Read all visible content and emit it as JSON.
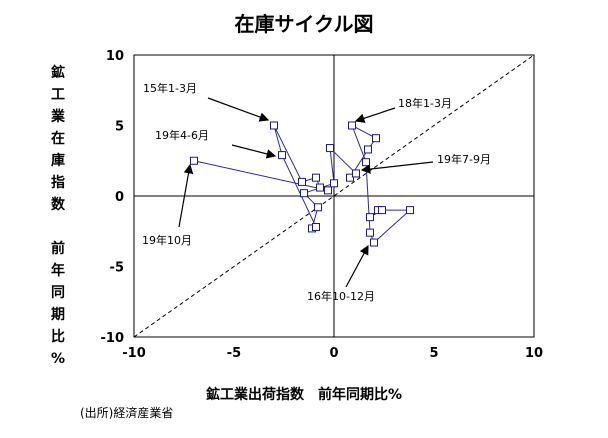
{
  "chart_data": {
    "type": "scatter",
    "title": "在庫サイクル図",
    "xlabel": "鉱工業出荷指数　前年同期比%",
    "ylabel": [
      "鉱",
      "工",
      "業",
      "在",
      "庫",
      "指",
      "数",
      "",
      "前",
      "年",
      "同",
      "期",
      "比",
      "%"
    ],
    "xlim": [
      -10,
      10
    ],
    "ylim": [
      -10,
      10
    ],
    "xticks": [
      "-10",
      "-5",
      "0",
      "5",
      "10"
    ],
    "yticks": [
      "10",
      "5",
      "0",
      "-5",
      "-10"
    ],
    "grid": false,
    "reference_line": "y = x (dashed)",
    "series": [
      {
        "x": [
          2.2,
          1.8,
          2.4,
          3.8,
          2.0,
          1.8,
          1.6,
          0.9,
          2.1,
          1.7,
          0.8,
          1.1,
          -0.2,
          0.0,
          -1.5,
          -0.8,
          -1.1,
          -0.9,
          -2.6,
          -3.0,
          -1.6,
          -0.9,
          -0.7,
          -0.3,
          -7.0
        ],
        "y": [
          -1.0,
          -1.5,
          -1.0,
          -1.0,
          -3.3,
          -2.6,
          2.4,
          5.0,
          4.1,
          3.3,
          1.3,
          1.6,
          3.4,
          0.9,
          0.2,
          -0.8,
          -2.3,
          -2.2,
          2.9,
          5.0,
          1.0,
          1.3,
          0.6,
          0.4,
          2.5
        ]
      }
    ],
    "annotations": [
      {
        "text": "15年1-3月",
        "x": -3.0,
        "y": 5.0
      },
      {
        "text": "18年1-3月",
        "x": 0.9,
        "y": 5.0
      },
      {
        "text": "19年4-6月",
        "x": -2.6,
        "y": 2.9
      },
      {
        "text": "19年7-9月",
        "x": 1.1,
        "y": 1.6
      },
      {
        "text": "19年10月",
        "x": -7.0,
        "y": 2.5
      },
      {
        "text": "16年10-12月",
        "x": 1.8,
        "y": -3.3
      }
    ]
  },
  "source": "(出所)経済産業省"
}
